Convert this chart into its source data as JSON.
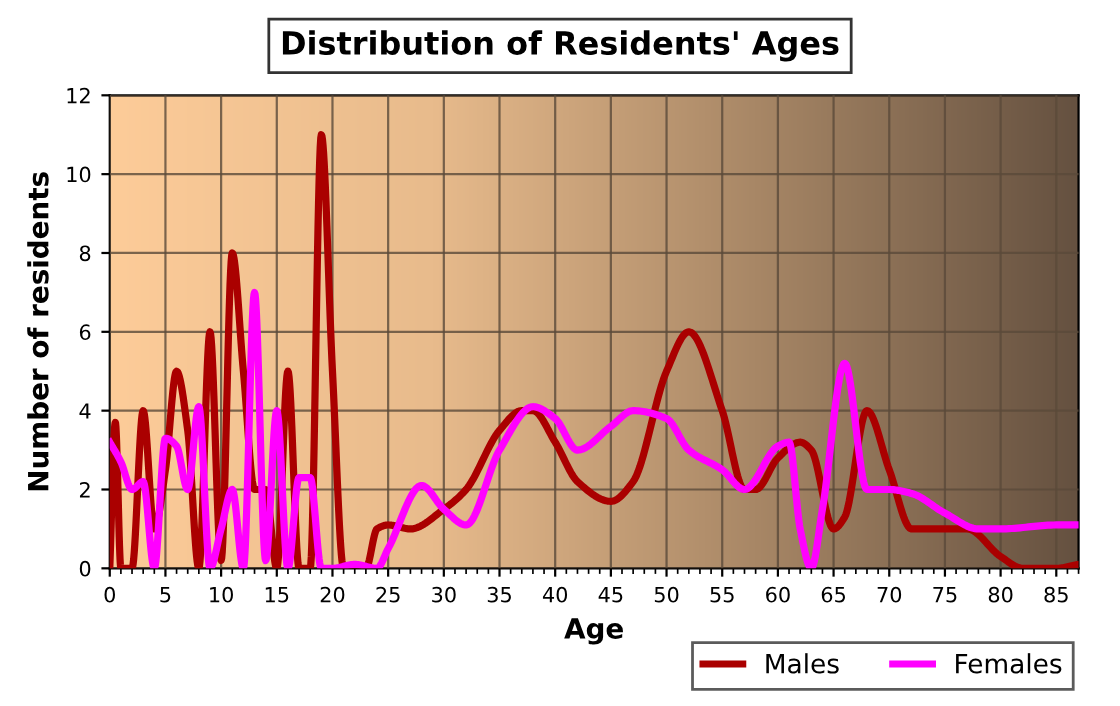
{
  "chart_data": {
    "type": "line",
    "title": "Distribution of Residents' Ages",
    "xlabel": "Age",
    "ylabel": "Number of residents",
    "xlim": [
      0,
      87
    ],
    "xticks": [
      0,
      5,
      10,
      15,
      20,
      25,
      30,
      35,
      40,
      45,
      50,
      55,
      60,
      65,
      70,
      75,
      80,
      85
    ],
    "ylim": [
      0,
      12
    ],
    "yticks": [
      0,
      2,
      4,
      6,
      8,
      10,
      12
    ],
    "grid": true,
    "legend": "bottom right",
    "series": [
      {
        "name": "Males",
        "color": "#aa0000",
        "x": [
          0,
          0.5,
          1,
          2,
          3,
          4,
          5,
          6,
          7,
          8,
          9,
          10,
          11,
          12,
          13,
          14,
          15,
          16,
          17,
          18,
          19,
          20,
          21,
          22,
          23,
          24,
          25,
          27,
          30,
          32,
          35,
          37,
          38,
          40,
          42,
          45,
          47,
          50,
          52,
          55,
          57,
          58,
          60,
          62,
          63,
          65,
          66,
          68,
          70,
          72,
          75,
          77,
          80,
          82,
          85,
          87
        ],
        "values": [
          0,
          3.7,
          0,
          0,
          4,
          1,
          2.5,
          5,
          3.5,
          0,
          6,
          0.2,
          8,
          5,
          2,
          2,
          0,
          5,
          0,
          0,
          11,
          5,
          0,
          0,
          0,
          1,
          1.1,
          1,
          1.5,
          2,
          3.5,
          4,
          4,
          3.2,
          2.2,
          1.7,
          2.2,
          5,
          6,
          4,
          2,
          2,
          2.8,
          3.2,
          3,
          1,
          1.3,
          4,
          2.5,
          1,
          1,
          1,
          0.3,
          0,
          0,
          0.1
        ]
      },
      {
        "name": "Females",
        "color": "#ff00ff",
        "x": [
          0,
          1,
          2,
          3,
          4,
          5,
          6,
          7,
          8,
          9,
          10,
          11,
          12,
          13,
          14,
          15,
          16,
          17,
          18,
          19,
          20,
          22,
          24,
          25,
          28,
          30,
          32,
          35,
          38,
          40,
          42,
          45,
          47,
          50,
          52,
          55,
          57,
          60,
          61,
          62,
          63,
          64,
          66,
          68,
          70,
          72,
          75,
          78,
          80,
          85,
          87
        ],
        "values": [
          3.2,
          2.7,
          2,
          2.2,
          0,
          3.3,
          3.1,
          2,
          4.1,
          0,
          1,
          2,
          0,
          7,
          0.2,
          4,
          0,
          2.3,
          2.3,
          0,
          0,
          0.1,
          0,
          0.5,
          2.1,
          1.5,
          1.1,
          3,
          4.1,
          3.8,
          3,
          3.6,
          4,
          3.8,
          3,
          2.5,
          2,
          3.1,
          3.2,
          1,
          0,
          1.5,
          5.2,
          2,
          2,
          1.9,
          1.4,
          1,
          1,
          1.1,
          1.1
        ]
      }
    ]
  }
}
